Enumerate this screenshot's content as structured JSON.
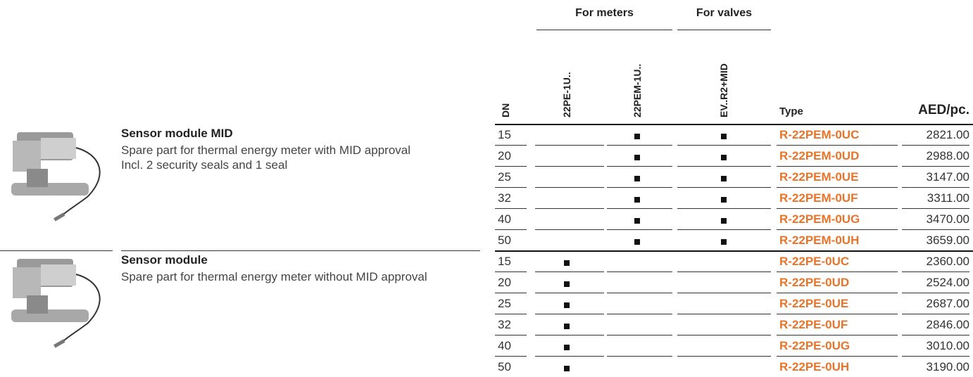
{
  "header": {
    "groups": [
      "For meters",
      "For valves"
    ],
    "columns": [
      "DN",
      "22PE-1U..",
      "22PEM-1U..",
      "EV..R2+MID",
      "Type",
      "AED/pc."
    ]
  },
  "products": [
    {
      "title": "Sensor module MID",
      "description": [
        "Spare part for thermal energy meter with MID approval",
        "Incl. 2 security seals and 1 seal"
      ],
      "rows": [
        {
          "dn": 15,
          "marks": [
            false,
            true,
            true
          ],
          "type": "R-22PEM-0UC",
          "price": "2821.00"
        },
        {
          "dn": 20,
          "marks": [
            false,
            true,
            true
          ],
          "type": "R-22PEM-0UD",
          "price": "2988.00"
        },
        {
          "dn": 25,
          "marks": [
            false,
            true,
            true
          ],
          "type": "R-22PEM-0UE",
          "price": "3147.00"
        },
        {
          "dn": 32,
          "marks": [
            false,
            true,
            true
          ],
          "type": "R-22PEM-0UF",
          "price": "3311.00"
        },
        {
          "dn": 40,
          "marks": [
            false,
            true,
            true
          ],
          "type": "R-22PEM-0UG",
          "price": "3470.00"
        },
        {
          "dn": 50,
          "marks": [
            false,
            true,
            true
          ],
          "type": "R-22PEM-0UH",
          "price": "3659.00"
        }
      ]
    },
    {
      "title": "Sensor module",
      "description": [
        "Spare part for thermal energy meter without MID approval"
      ],
      "rows": [
        {
          "dn": 15,
          "marks": [
            true,
            false,
            false
          ],
          "type": "R-22PE-0UC",
          "price": "2360.00"
        },
        {
          "dn": 20,
          "marks": [
            true,
            false,
            false
          ],
          "type": "R-22PE-0UD",
          "price": "2524.00"
        },
        {
          "dn": 25,
          "marks": [
            true,
            false,
            false
          ],
          "type": "R-22PE-0UE",
          "price": "2687.00"
        },
        {
          "dn": 32,
          "marks": [
            true,
            false,
            false
          ],
          "type": "R-22PE-0UF",
          "price": "2846.00"
        },
        {
          "dn": 40,
          "marks": [
            true,
            false,
            false
          ],
          "type": "R-22PE-0UG",
          "price": "3010.00"
        },
        {
          "dn": 50,
          "marks": [
            true,
            false,
            false
          ],
          "type": "R-22PE-0UH",
          "price": "3190.00"
        }
      ]
    }
  ]
}
